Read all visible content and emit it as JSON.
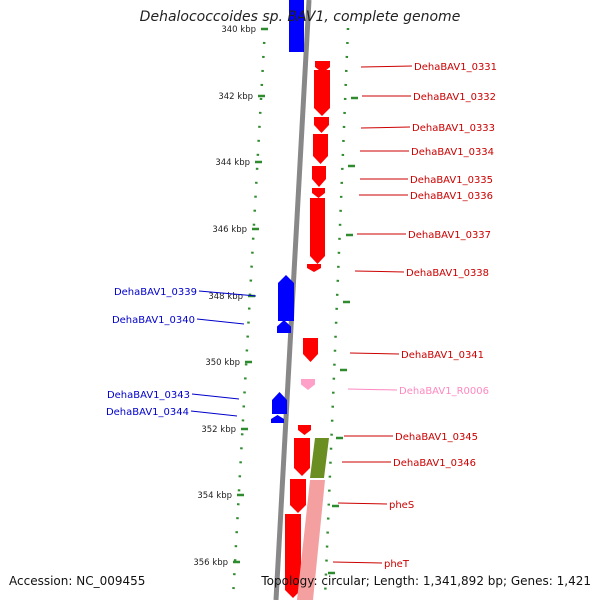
{
  "title": "Dehalococcoides sp. BAV1, complete genome",
  "footer": {
    "accession": "Accession: NC_009455",
    "summary": "Topology: circular; Length: 1,341,892 bp; Genes: 1,421"
  },
  "colors": {
    "gene_forward": "#ff0000",
    "gene_reverse": "#0000ff",
    "label_forward": "#cc0000",
    "label_reverse": "#0000cc",
    "rna": "#ffa0c8",
    "rna_label": "#ff88c0",
    "olive": "#6b8e23",
    "pseudo": "#f4a0a0",
    "scale": "#2e8b2e",
    "backbone": "#888888"
  },
  "scale_labels": [
    "340 kbp",
    "342 kbp",
    "344 kbp",
    "346 kbp",
    "348 kbp",
    "350 kbp",
    "352 kbp",
    "354 kbp",
    "356 kbp"
  ],
  "genes": [
    {
      "name": "DehaBAV1_0331",
      "strand": "forward"
    },
    {
      "name": "DehaBAV1_0332",
      "strand": "forward"
    },
    {
      "name": "DehaBAV1_0333",
      "strand": "forward"
    },
    {
      "name": "DehaBAV1_0334",
      "strand": "forward"
    },
    {
      "name": "DehaBAV1_0335",
      "strand": "forward"
    },
    {
      "name": "DehaBAV1_0336",
      "strand": "forward"
    },
    {
      "name": "DehaBAV1_0337",
      "strand": "forward"
    },
    {
      "name": "DehaBAV1_0338",
      "strand": "forward"
    },
    {
      "name": "DehaBAV1_0339",
      "strand": "reverse"
    },
    {
      "name": "DehaBAV1_0340",
      "strand": "reverse"
    },
    {
      "name": "DehaBAV1_0341",
      "strand": "forward"
    },
    {
      "name": "DehaBAV1_R0006",
      "strand": "rna"
    },
    {
      "name": "DehaBAV1_0343",
      "strand": "reverse"
    },
    {
      "name": "DehaBAV1_0344",
      "strand": "reverse"
    },
    {
      "name": "DehaBAV1_0345",
      "strand": "forward"
    },
    {
      "name": "DehaBAV1_0346",
      "strand": "forward"
    },
    {
      "name": "pheS",
      "strand": "forward"
    },
    {
      "name": "pheT",
      "strand": "forward"
    }
  ]
}
